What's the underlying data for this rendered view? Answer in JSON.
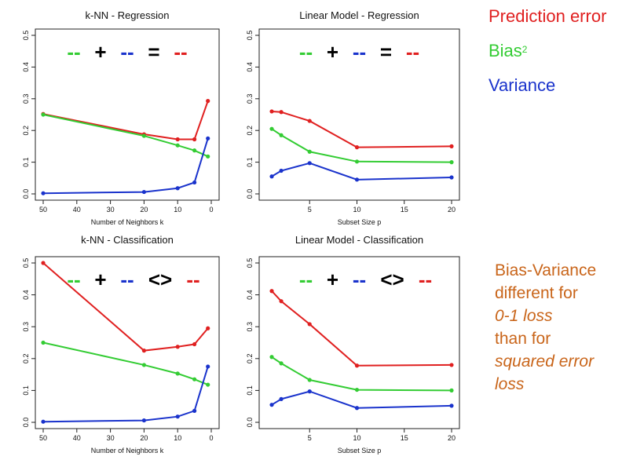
{
  "legend": {
    "prediction_error": "Prediction error",
    "bias2": "Bias",
    "bias2_sup": "2",
    "variance": "Variance",
    "colors": {
      "prediction_error": "#e02020",
      "bias2": "#33cc33",
      "variance": "#1a33cc"
    }
  },
  "note": {
    "line1": "Bias-Variance",
    "line2": "different for",
    "line3": "0-1 loss",
    "line4": "than for",
    "line5": "squared error",
    "line6": "loss"
  },
  "chart_data": [
    {
      "type": "line",
      "title": "k-NN - Regression",
      "xlabel": "Number of Neighbors k",
      "ylabel": "",
      "xlim": [
        50,
        0
      ],
      "ylim": [
        0,
        0.5
      ],
      "xticks": [
        50,
        40,
        30,
        20,
        10,
        0
      ],
      "yticks": [
        0.0,
        0.1,
        0.2,
        0.3,
        0.4,
        0.5
      ],
      "equation": {
        "dash1": "--",
        "op1": "+",
        "dash2": "--",
        "op2": "=",
        "dash3": "--"
      },
      "x": [
        50,
        20,
        10,
        5,
        1
      ],
      "series": [
        {
          "name": "Prediction error",
          "color": "#e02020",
          "values": [
            0.252,
            0.188,
            0.172,
            0.172,
            0.293
          ]
        },
        {
          "name": "Bias2",
          "color": "#33cc33",
          "values": [
            0.25,
            0.183,
            0.153,
            0.137,
            0.118
          ]
        },
        {
          "name": "Variance",
          "color": "#1a33cc",
          "values": [
            0.002,
            0.006,
            0.018,
            0.036,
            0.175
          ]
        }
      ]
    },
    {
      "type": "line",
      "title": "Linear Model - Regression",
      "xlabel": "Subset Size p",
      "ylabel": "",
      "xlim": [
        0.5,
        20
      ],
      "ylim": [
        0,
        0.5
      ],
      "xticks": [
        5,
        10,
        15,
        20
      ],
      "yticks": [
        0.0,
        0.1,
        0.2,
        0.3,
        0.4,
        0.5
      ],
      "equation": {
        "dash1": "--",
        "op1": "+",
        "dash2": "--",
        "op2": "=",
        "dash3": "--"
      },
      "x": [
        1,
        2,
        5,
        10,
        20
      ],
      "series": [
        {
          "name": "Prediction error",
          "color": "#e02020",
          "values": [
            0.26,
            0.258,
            0.23,
            0.147,
            0.15
          ]
        },
        {
          "name": "Bias2",
          "color": "#33cc33",
          "values": [
            0.205,
            0.185,
            0.133,
            0.102,
            0.1
          ]
        },
        {
          "name": "Variance",
          "color": "#1a33cc",
          "values": [
            0.055,
            0.073,
            0.097,
            0.045,
            0.052
          ]
        }
      ]
    },
    {
      "type": "line",
      "title": "k-NN - Classification",
      "xlabel": "Number of Neighbors k",
      "ylabel": "",
      "xlim": [
        50,
        0
      ],
      "ylim": [
        0,
        0.5
      ],
      "xticks": [
        50,
        40,
        30,
        20,
        10,
        0
      ],
      "yticks": [
        0.0,
        0.1,
        0.2,
        0.3,
        0.4,
        0.5
      ],
      "equation": {
        "dash1": "--",
        "op1": "+",
        "dash2": "--",
        "op2": "<>",
        "dash3": "--"
      },
      "x": [
        50,
        20,
        10,
        5,
        1
      ],
      "series": [
        {
          "name": "Prediction error",
          "color": "#e02020",
          "values": [
            0.5,
            0.225,
            0.237,
            0.245,
            0.295
          ]
        },
        {
          "name": "Bias2",
          "color": "#33cc33",
          "values": [
            0.25,
            0.18,
            0.153,
            0.135,
            0.118
          ]
        },
        {
          "name": "Variance",
          "color": "#1a33cc",
          "values": [
            0.002,
            0.006,
            0.018,
            0.036,
            0.175
          ]
        }
      ]
    },
    {
      "type": "line",
      "title": "Linear Model - Classification",
      "xlabel": "Subset Size p",
      "ylabel": "",
      "xlim": [
        0.5,
        20
      ],
      "ylim": [
        0,
        0.5
      ],
      "xticks": [
        5,
        10,
        15,
        20
      ],
      "yticks": [
        0.0,
        0.1,
        0.2,
        0.3,
        0.4,
        0.5
      ],
      "equation": {
        "dash1": "--",
        "op1": "+",
        "dash2": "--",
        "op2": "<>",
        "dash3": "--"
      },
      "x": [
        1,
        2,
        5,
        10,
        20
      ],
      "series": [
        {
          "name": "Prediction error",
          "color": "#e02020",
          "values": [
            0.412,
            0.38,
            0.308,
            0.178,
            0.18
          ]
        },
        {
          "name": "Bias2",
          "color": "#33cc33",
          "values": [
            0.205,
            0.185,
            0.133,
            0.102,
            0.1
          ]
        },
        {
          "name": "Variance",
          "color": "#1a33cc",
          "values": [
            0.055,
            0.073,
            0.097,
            0.045,
            0.052
          ]
        }
      ]
    }
  ]
}
